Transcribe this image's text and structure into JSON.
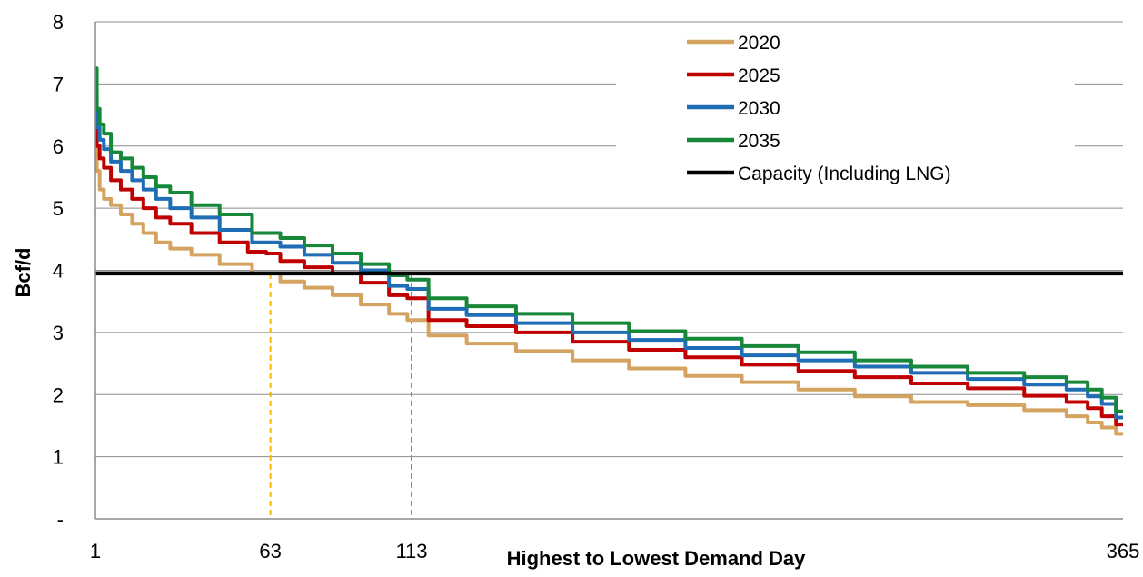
{
  "chart_data": {
    "type": "line",
    "title": "",
    "xlabel": "Highest to Lowest Demand Day",
    "ylabel": "Bcf/d",
    "xlim": [
      1,
      365
    ],
    "ylim": [
      0,
      8
    ],
    "y_ticks": [
      "-",
      "1",
      "2",
      "3",
      "4",
      "5",
      "6",
      "7",
      "8"
    ],
    "x_ticks": [
      "1",
      "63",
      "113",
      "365"
    ],
    "grid": "horizontal",
    "legend_position": "top-right",
    "series": [
      {
        "name": "2020",
        "color": "#D4A35F",
        "x": [
          1,
          2,
          3,
          5,
          8,
          12,
          16,
          20,
          25,
          30,
          40,
          50,
          63,
          70,
          80,
          90,
          100,
          110,
          113,
          125,
          140,
          160,
          180,
          200,
          220,
          240,
          260,
          280,
          300,
          320,
          340,
          350,
          355,
          360,
          365
        ],
        "y": [
          5.95,
          5.6,
          5.3,
          5.15,
          5.05,
          4.9,
          4.75,
          4.6,
          4.45,
          4.35,
          4.25,
          4.1,
          3.95,
          3.82,
          3.72,
          3.6,
          3.45,
          3.3,
          3.2,
          2.95,
          2.82,
          2.7,
          2.55,
          2.42,
          2.3,
          2.2,
          2.08,
          1.97,
          1.88,
          1.83,
          1.75,
          1.65,
          1.55,
          1.47,
          1.37
        ]
      },
      {
        "name": "2025",
        "color": "#C00000",
        "x": [
          1,
          2,
          3,
          5,
          8,
          12,
          16,
          20,
          25,
          30,
          40,
          50,
          60,
          63,
          70,
          80,
          90,
          100,
          110,
          113,
          125,
          140,
          160,
          180,
          200,
          220,
          240,
          260,
          280,
          300,
          320,
          340,
          350,
          355,
          360,
          365
        ],
        "y": [
          6.4,
          6.0,
          5.8,
          5.65,
          5.45,
          5.3,
          5.15,
          5.0,
          4.85,
          4.75,
          4.6,
          4.45,
          4.3,
          4.27,
          4.15,
          4.05,
          3.95,
          3.8,
          3.6,
          3.55,
          3.2,
          3.1,
          3.0,
          2.85,
          2.72,
          2.6,
          2.48,
          2.38,
          2.28,
          2.18,
          2.1,
          1.98,
          1.88,
          1.78,
          1.65,
          1.52
        ]
      },
      {
        "name": "2030",
        "color": "#1F6EB5",
        "x": [
          1,
          2,
          3,
          5,
          8,
          12,
          16,
          20,
          25,
          30,
          40,
          50,
          63,
          70,
          80,
          90,
          100,
          110,
          113,
          125,
          140,
          160,
          180,
          200,
          220,
          240,
          260,
          280,
          300,
          320,
          340,
          350,
          355,
          360,
          365
        ],
        "y": [
          6.85,
          6.3,
          6.1,
          5.95,
          5.75,
          5.6,
          5.45,
          5.3,
          5.15,
          5.0,
          4.85,
          4.65,
          4.45,
          4.38,
          4.25,
          4.12,
          4.0,
          3.75,
          3.7,
          3.38,
          3.28,
          3.15,
          3.0,
          2.88,
          2.75,
          2.63,
          2.55,
          2.45,
          2.35,
          2.25,
          2.16,
          2.08,
          1.97,
          1.85,
          1.63
        ]
      },
      {
        "name": "2035",
        "color": "#17873A",
        "x": [
          1,
          2,
          3,
          5,
          8,
          12,
          16,
          20,
          25,
          30,
          40,
          50,
          63,
          70,
          80,
          90,
          100,
          110,
          113,
          125,
          140,
          160,
          180,
          200,
          220,
          240,
          260,
          280,
          300,
          320,
          340,
          350,
          355,
          360,
          365
        ],
        "y": [
          7.25,
          6.6,
          6.35,
          6.2,
          5.9,
          5.8,
          5.65,
          5.5,
          5.35,
          5.25,
          5.05,
          4.9,
          4.6,
          4.52,
          4.4,
          4.27,
          4.1,
          3.92,
          3.85,
          3.55,
          3.42,
          3.3,
          3.15,
          3.02,
          2.9,
          2.78,
          2.68,
          2.55,
          2.45,
          2.35,
          2.28,
          2.2,
          2.08,
          1.95,
          1.73
        ]
      },
      {
        "name": "Capacity (Including LNG)",
        "color": "#000000",
        "x": [
          1,
          365
        ],
        "y": [
          3.95,
          3.95
        ]
      }
    ],
    "reference_lines": [
      {
        "x": 63,
        "y": 3.95,
        "color": "#F5B800",
        "style": "dashed"
      },
      {
        "x": 113,
        "y": 3.95,
        "color": "#8C8C6E",
        "style": "dashed"
      }
    ]
  }
}
